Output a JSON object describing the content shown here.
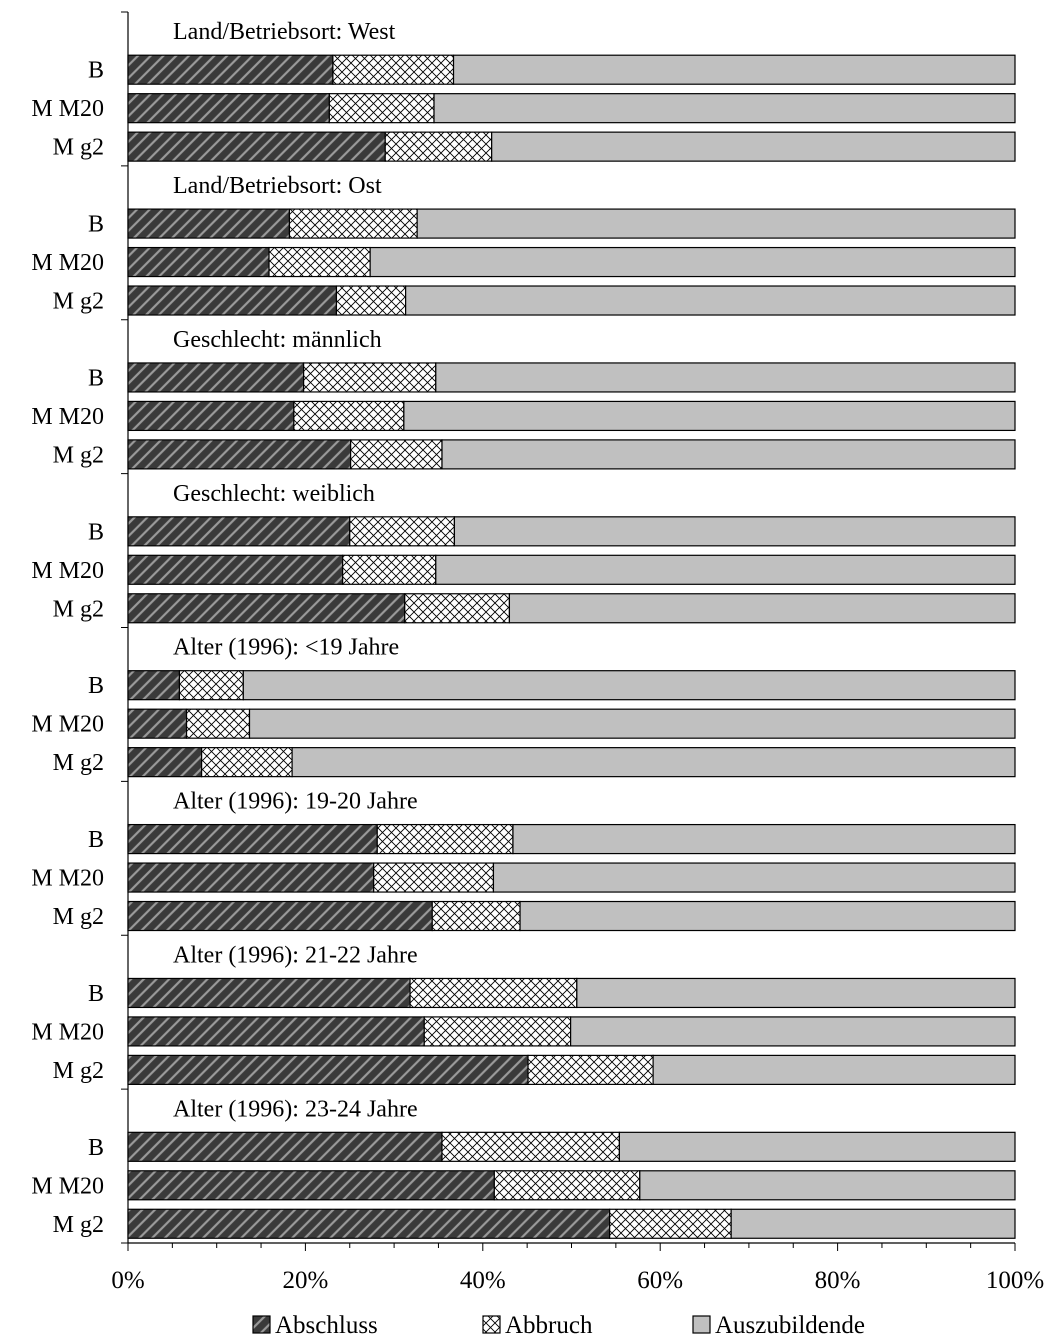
{
  "chart_data": {
    "type": "bar",
    "orientation": "horizontal",
    "stacked": "percent",
    "x_ticks": [
      "0%",
      "20%",
      "40%",
      "60%",
      "80%",
      "100%"
    ],
    "xlim": [
      0,
      100
    ],
    "legend": {
      "position": "bottom",
      "entries": [
        "Abschluss",
        "Abbruch",
        "Auszubildende"
      ]
    },
    "series_styles": [
      {
        "name": "Abschluss",
        "pattern": "diagonal-hatch",
        "color": "#3a3a3a"
      },
      {
        "name": "Abbruch",
        "pattern": "crosshatch",
        "color": "#ffffff"
      },
      {
        "name": "Auszubildende",
        "pattern": "solid",
        "color": "#c0c0c0"
      }
    ],
    "groups": [
      {
        "label": "Land/Betriebsort: West",
        "bars": [
          {
            "category": "B",
            "values": [
              23.1,
              13.6,
              63.3
            ]
          },
          {
            "category": "M M20",
            "values": [
              22.7,
              11.8,
              65.5
            ]
          },
          {
            "category": "M g2",
            "values": [
              29.0,
              12.0,
              59.0
            ]
          }
        ]
      },
      {
        "label": "Land/Betriebsort: Ost",
        "bars": [
          {
            "category": "B",
            "values": [
              18.2,
              14.4,
              67.4
            ]
          },
          {
            "category": "M M20",
            "values": [
              15.9,
              11.4,
              72.7
            ]
          },
          {
            "category": "M g2",
            "values": [
              23.5,
              7.8,
              68.7
            ]
          }
        ]
      },
      {
        "label": "Geschlecht: männlich",
        "bars": [
          {
            "category": "B",
            "values": [
              19.8,
              14.9,
              65.3
            ]
          },
          {
            "category": "M M20",
            "values": [
              18.7,
              12.4,
              68.9
            ]
          },
          {
            "category": "M g2",
            "values": [
              25.1,
              10.3,
              64.6
            ]
          }
        ]
      },
      {
        "label": "Geschlecht: weiblich",
        "bars": [
          {
            "category": "B",
            "values": [
              25.0,
              11.8,
              63.2
            ]
          },
          {
            "category": "M M20",
            "values": [
              24.2,
              10.5,
              65.3
            ]
          },
          {
            "category": "M g2",
            "values": [
              31.2,
              11.8,
              57.0
            ]
          }
        ]
      },
      {
        "label": "Alter (1996): <19 Jahre",
        "bars": [
          {
            "category": "B",
            "values": [
              5.8,
              7.2,
              87.0
            ]
          },
          {
            "category": "M M20",
            "values": [
              6.6,
              7.1,
              86.3
            ]
          },
          {
            "category": "M g2",
            "values": [
              8.3,
              10.2,
              81.5
            ]
          }
        ]
      },
      {
        "label": "Alter (1996): 19-20 Jahre",
        "bars": [
          {
            "category": "B",
            "values": [
              28.1,
              15.3,
              56.6
            ]
          },
          {
            "category": "M M20",
            "values": [
              27.7,
              13.5,
              58.8
            ]
          },
          {
            "category": "M g2",
            "values": [
              34.3,
              9.9,
              55.8
            ]
          }
        ]
      },
      {
        "label": "Alter (1996): 21-22 Jahre",
        "bars": [
          {
            "category": "B",
            "values": [
              31.8,
              18.8,
              49.4
            ]
          },
          {
            "category": "M M20",
            "values": [
              33.4,
              16.5,
              50.1
            ]
          },
          {
            "category": "M g2",
            "values": [
              45.1,
              14.1,
              40.8
            ]
          }
        ]
      },
      {
        "label": "Alter (1996): 23-24 Jahre",
        "bars": [
          {
            "category": "B",
            "values": [
              35.4,
              20.0,
              44.6
            ]
          },
          {
            "category": "M M20",
            "values": [
              41.3,
              16.4,
              42.3
            ]
          },
          {
            "category": "M g2",
            "values": [
              54.3,
              13.7,
              32.0
            ]
          }
        ]
      }
    ]
  }
}
